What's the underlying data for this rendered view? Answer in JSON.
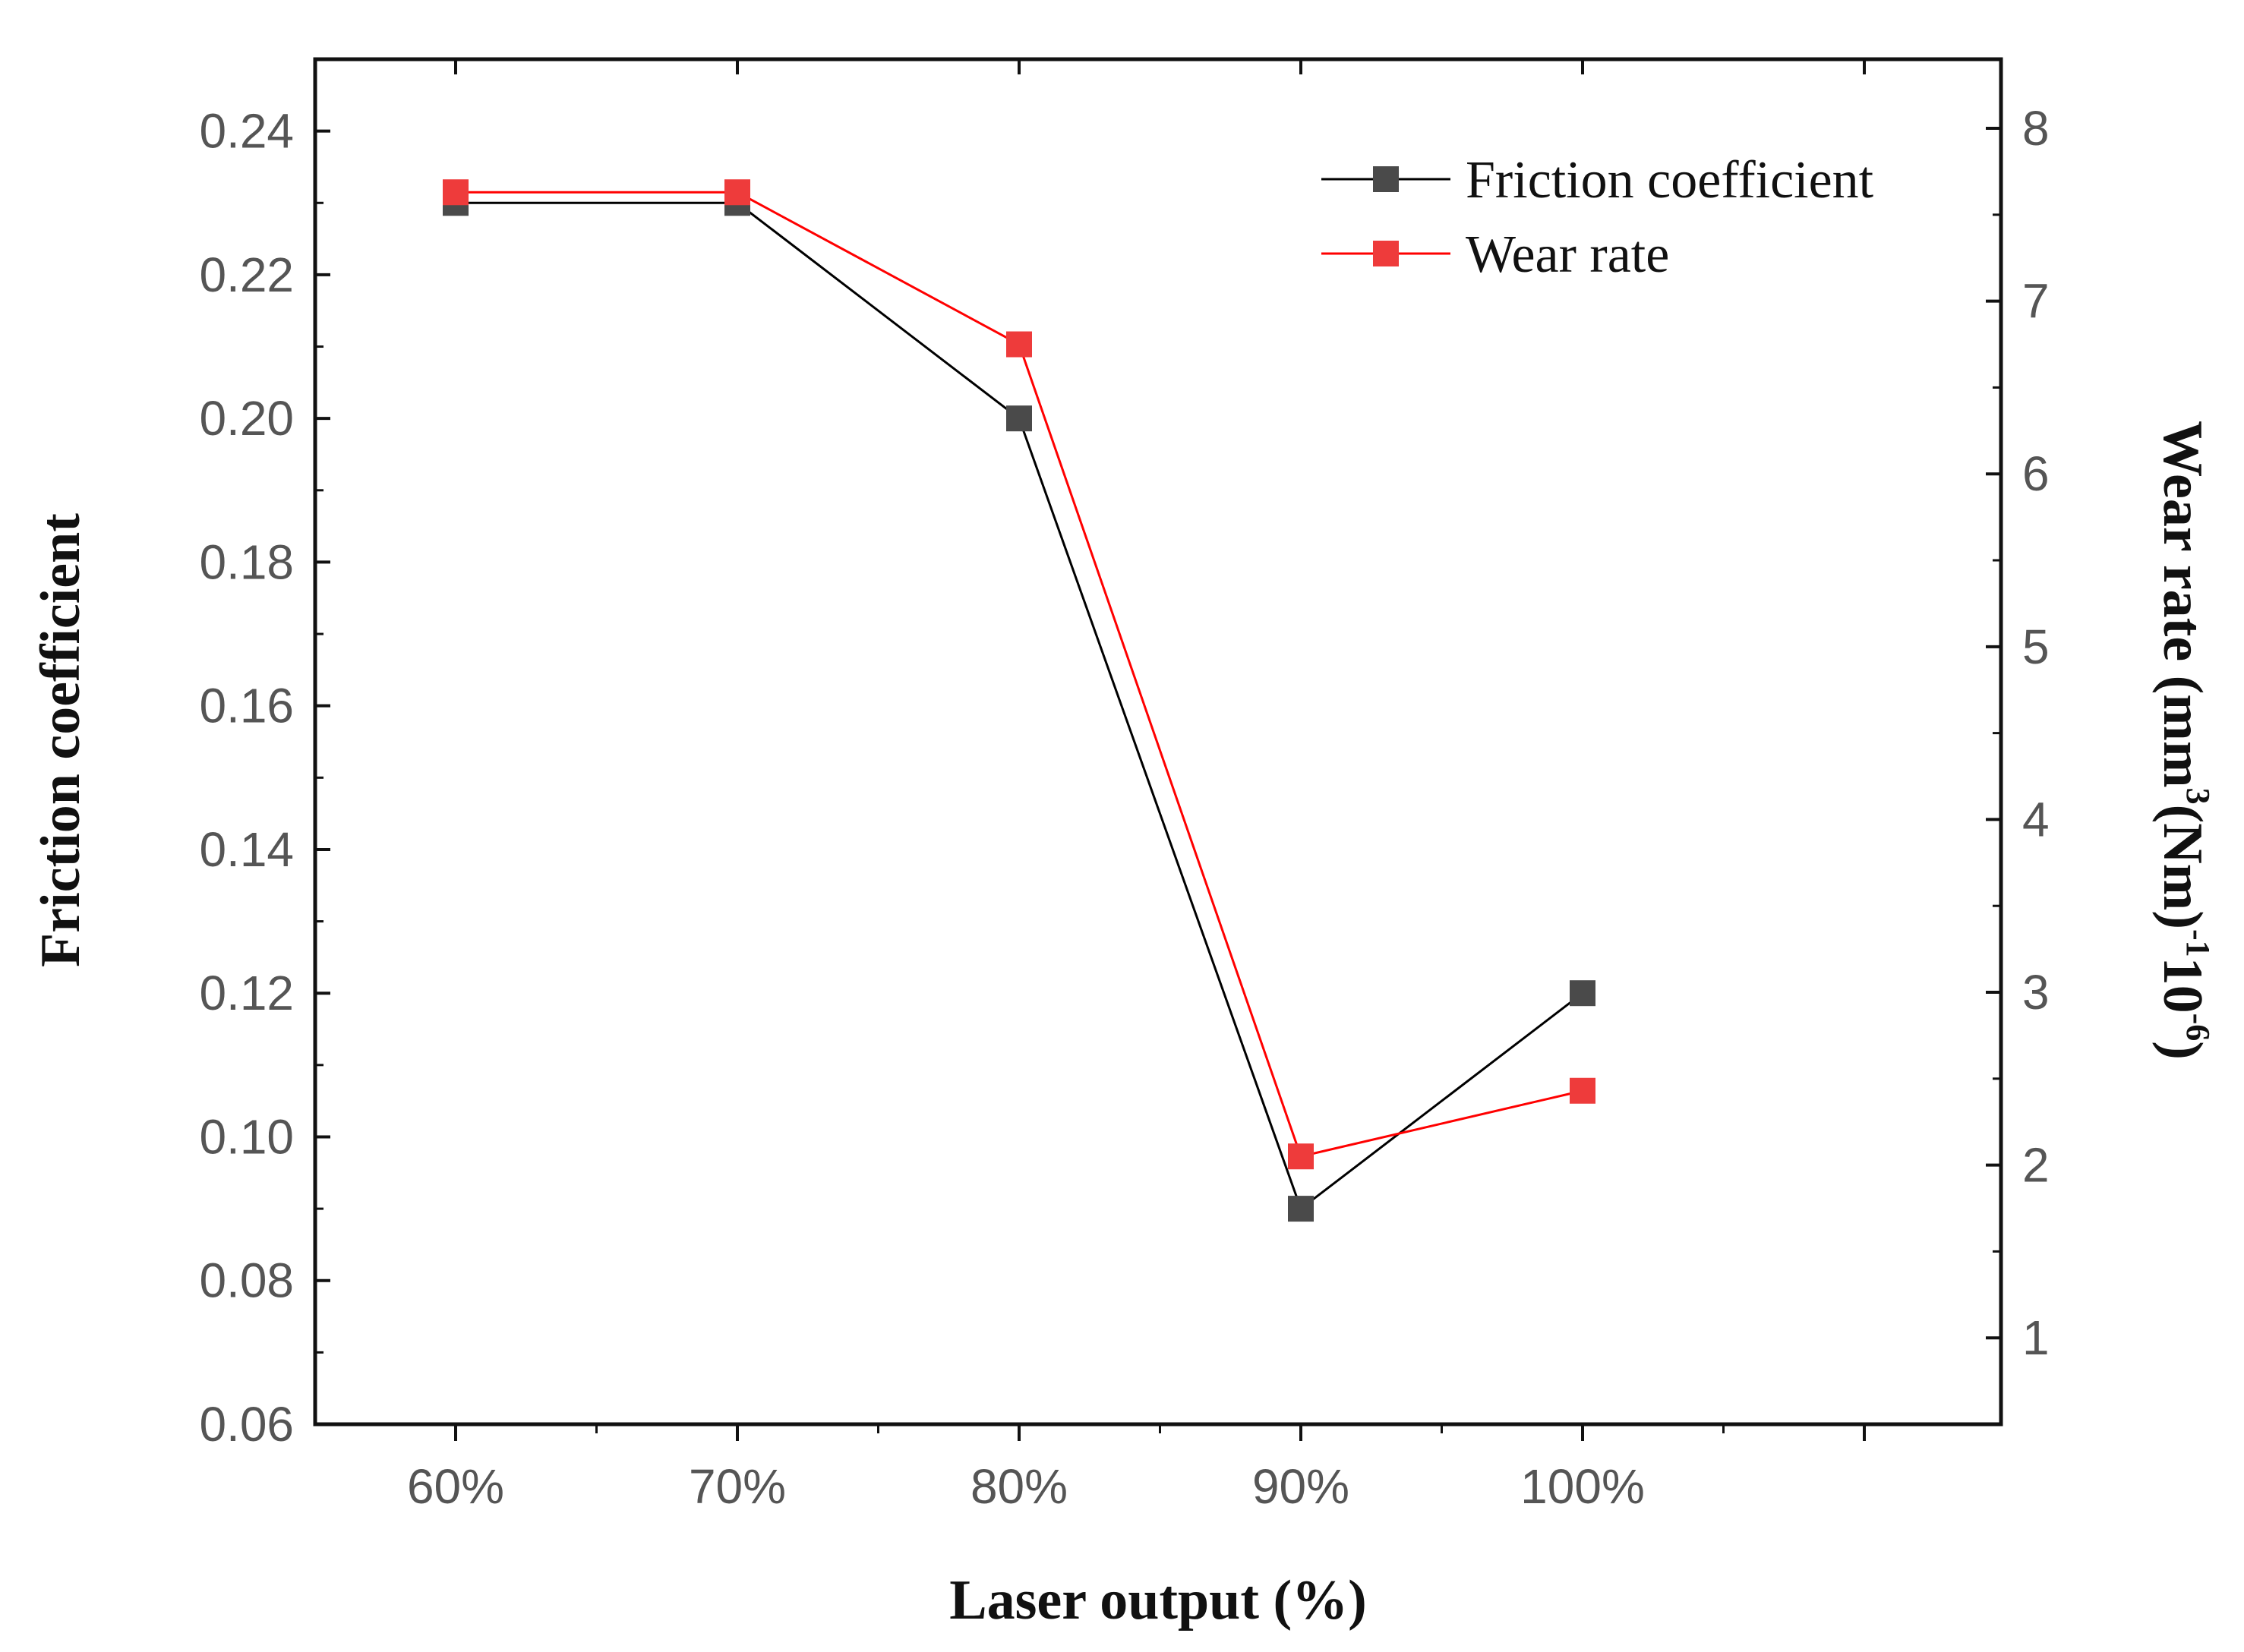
{
  "chart_data": {
    "type": "line",
    "title": "",
    "xlabel": "Laser output (%)",
    "categories": [
      "60%",
      "70%",
      "80%",
      "90%",
      "100%"
    ],
    "y_left": {
      "label": "Friction coefficient",
      "ylim": [
        0.06,
        0.25
      ],
      "ticks": [
        "0.06",
        "0.08",
        "0.10",
        "0.12",
        "0.14",
        "0.16",
        "0.18",
        "0.20",
        "0.22",
        "0.24"
      ]
    },
    "y_right": {
      "label_main": "Wear rate (mm",
      "label_sup1": "3",
      "label_mid": "(Nm)",
      "label_sup2": "-1",
      "label_mid2": "10",
      "label_sup3": "-6",
      "label_end": ")",
      "ylim": [
        0.5,
        8.4
      ],
      "ticks": [
        "1",
        "2",
        "3",
        "4",
        "5",
        "6",
        "7",
        "8"
      ]
    },
    "series": [
      {
        "name": "Friction coefficient",
        "axis": "left",
        "color": "#000000",
        "marker_color": "#4a4a4a",
        "values": [
          0.23,
          0.23,
          0.2,
          0.09,
          0.12
        ]
      },
      {
        "name": "Wear rate",
        "axis": "right",
        "color": "#ff0000",
        "marker_color": "#ee3b3b",
        "values": [
          7.63,
          7.63,
          6.75,
          2.05,
          2.43
        ]
      }
    ],
    "legend_position": "top-right",
    "grid": false
  }
}
